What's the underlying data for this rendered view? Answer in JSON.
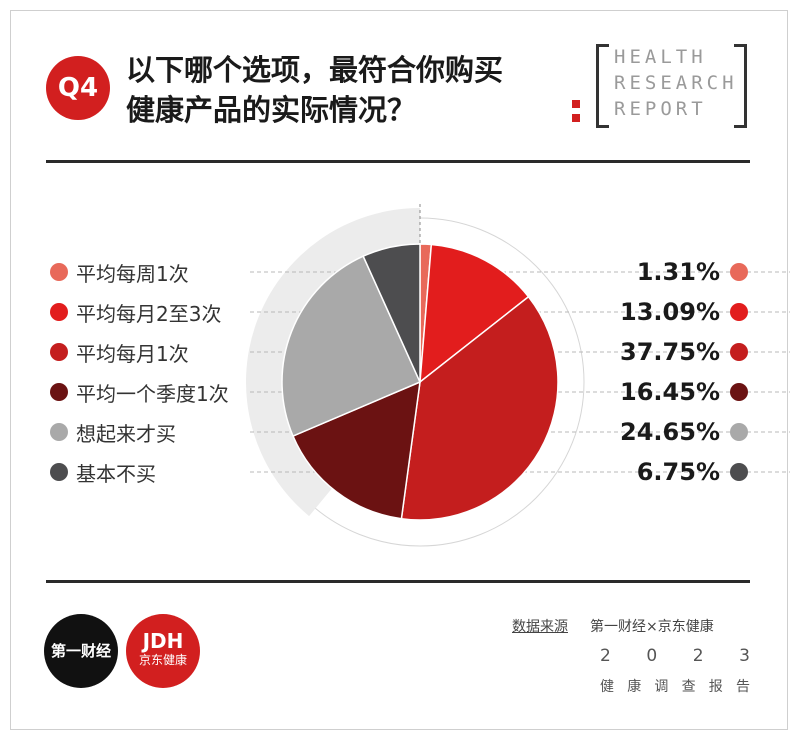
{
  "header": {
    "q_badge": "Q4",
    "question_line1": "以下哪个选项，最符合你购买",
    "question_line2": "健康产品的实际情况？",
    "brand_lines": [
      "HEALTH",
      "RESEARCH",
      "REPORT"
    ]
  },
  "chart_data": {
    "type": "pie",
    "categories": [
      "平均每周1次",
      "平均每月2至3次",
      "平均每月1次",
      "平均一个季度1次",
      "想起来才买",
      "基本不买"
    ],
    "values": [
      1.31,
      13.09,
      37.75,
      16.45,
      24.65,
      6.75
    ],
    "labels": [
      "1.31%",
      "13.09%",
      "37.75%",
      "16.45%",
      "24.65%",
      "6.75%"
    ],
    "colors": [
      "#e8695a",
      "#e21d1d",
      "#c41e1e",
      "#6b1212",
      "#a9a9a9",
      "#4d4d4f"
    ],
    "legend_position": "left",
    "unit": "%"
  },
  "footer": {
    "logo1": "第一财经",
    "logo2_line1": "JDH",
    "logo2_line2": "京东健康",
    "source_label": "数据来源",
    "source_value": "第一财经×京东健康",
    "year_digits": [
      "2",
      "0",
      "2",
      "3"
    ],
    "report_chars": [
      "健",
      "康",
      "调",
      "查",
      "报",
      "告"
    ]
  }
}
